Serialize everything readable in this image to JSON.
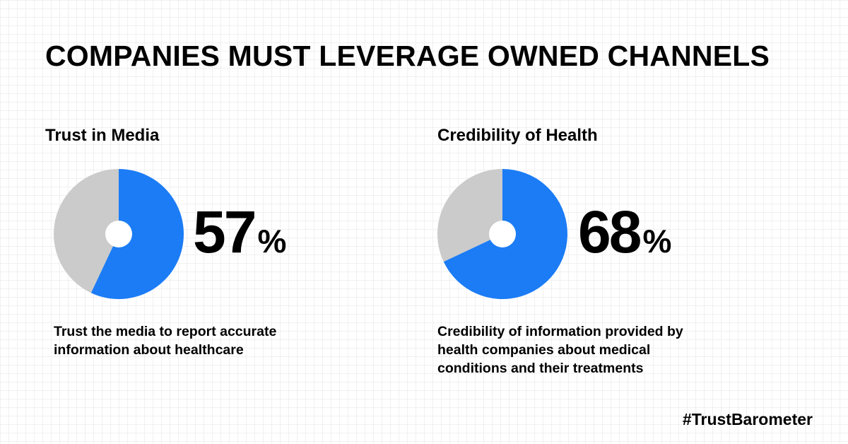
{
  "title": "COMPANIES MUST LEVERAGE OWNED CHANNELS",
  "hashtag": "#TrustBarometer",
  "colors": {
    "accent": "#1b7cf5",
    "remainder": "#cbcbcb",
    "hole": "#ffffff"
  },
  "chart_data": [
    {
      "type": "pie",
      "title": "Trust in Media",
      "value_label": "57",
      "unit": "%",
      "description": "Trust the media to report accurate information about healthcare",
      "slices": [
        {
          "value": 57,
          "color": "#1b7cf5"
        },
        {
          "value": 43,
          "color": "#cbcbcb"
        }
      ]
    },
    {
      "type": "pie",
      "title": "Credibility of Health",
      "value_label": "68",
      "unit": "%",
      "description": "Credibility of information provided by health companies about medical conditions and their treatments",
      "slices": [
        {
          "value": 68,
          "color": "#1b7cf5"
        },
        {
          "value": 32,
          "color": "#cbcbcb"
        }
      ]
    }
  ]
}
